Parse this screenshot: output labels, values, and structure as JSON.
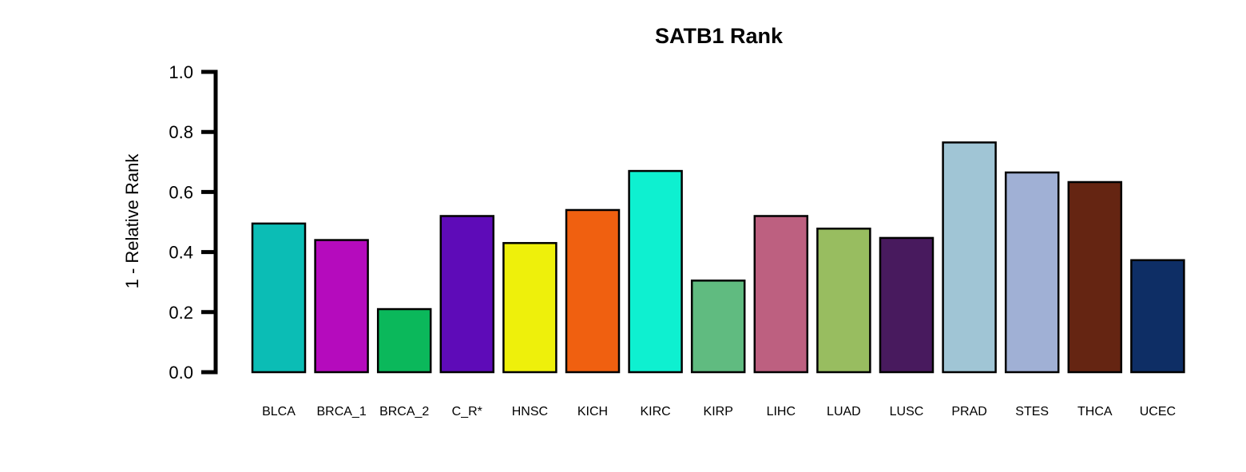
{
  "chart_data": {
    "type": "bar",
    "title": "SATB1 Rank",
    "xlabel": "",
    "ylabel": "1 - Relative Rank",
    "ylim": [
      0,
      1
    ],
    "yticks": [
      "0.0",
      "0.2",
      "0.4",
      "0.6",
      "0.8",
      "1.0"
    ],
    "ytick_values": [
      0,
      0.2,
      0.4,
      0.6,
      0.8,
      1.0
    ],
    "grid": false,
    "legend": "none",
    "categories": [
      "BLCA",
      "BRCA_1",
      "BRCA_2",
      "C_R*",
      "HNSC",
      "KICH",
      "KIRC",
      "KIRP",
      "LIHC",
      "LUAD",
      "LUSC",
      "PRAD",
      "STES",
      "THCA",
      "UCEC"
    ],
    "values": [
      0.495,
      0.44,
      0.21,
      0.52,
      0.43,
      0.54,
      0.67,
      0.305,
      0.52,
      0.478,
      0.447,
      0.765,
      0.665,
      0.633,
      0.373
    ],
    "colors": [
      "#0bbdb5",
      "#b50bbd",
      "#0bb85b",
      "#5e0bb8",
      "#eef00b",
      "#f06010",
      "#0ef0d0",
      "#60bb80",
      "#bd6080",
      "#98bd60",
      "#481a5e",
      "#a0c5d5",
      "#a0b0d5",
      "#652512",
      "#0e2e65"
    ]
  }
}
